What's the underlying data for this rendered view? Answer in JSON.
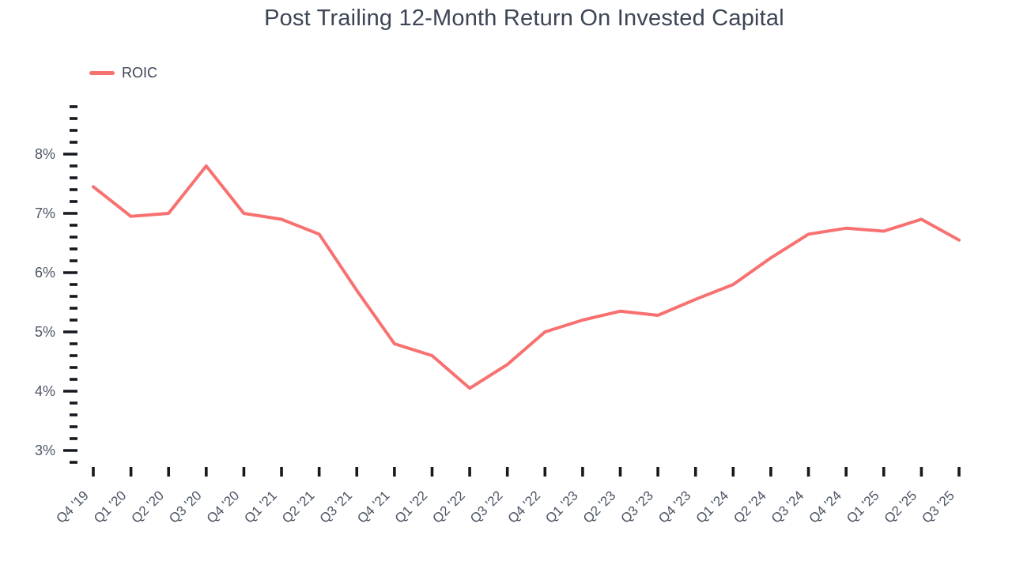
{
  "chart_data": {
    "type": "line",
    "title": "Post Trailing 12-Month Return On Invested Capital",
    "xlabel": "",
    "ylabel": "",
    "unit": "%",
    "grid": false,
    "legend_position": "top-left",
    "categories": [
      "Q4 '19",
      "Q1 '20",
      "Q2 '20",
      "Q3 '20",
      "Q4 '20",
      "Q1 '21",
      "Q2 '21",
      "Q3 '21",
      "Q4 '21",
      "Q1 '22",
      "Q2 '22",
      "Q3 '22",
      "Q4 '22",
      "Q1 '23",
      "Q2 '23",
      "Q3 '23",
      "Q4 '23",
      "Q1 '24",
      "Q2 '24",
      "Q3 '24",
      "Q4 '24",
      "Q1 '25",
      "Q2 '25",
      "Q3 '25"
    ],
    "series": [
      {
        "name": "ROIC",
        "color": "#f87171",
        "values": [
          7.45,
          6.95,
          7.0,
          7.8,
          7.0,
          6.9,
          6.65,
          5.7,
          4.8,
          4.6,
          4.05,
          4.45,
          5.0,
          5.2,
          5.35,
          5.28,
          5.55,
          5.8,
          6.25,
          6.65,
          6.75,
          6.7,
          6.9,
          6.55
        ]
      }
    ],
    "y_ticks": {
      "labels": [
        "3%",
        "4%",
        "5%",
        "6%",
        "7%",
        "8%"
      ],
      "values": [
        3,
        4,
        5,
        6,
        7,
        8
      ],
      "minor_step": 0.2,
      "axis_min": 2.8,
      "axis_max": 8.8
    },
    "colors": {
      "line": "#f87171",
      "tick_marks": "#16191f",
      "axis_labels": "#4c5564",
      "title": "#3c4555",
      "background": "#ffffff"
    }
  }
}
